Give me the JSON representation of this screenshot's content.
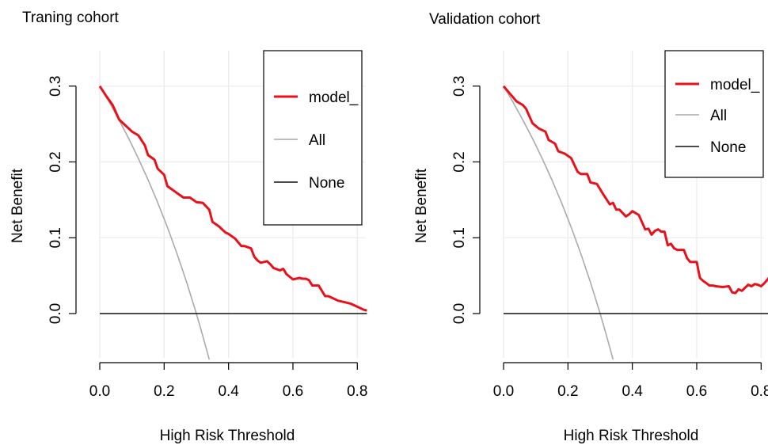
{
  "chart_data": [
    {
      "type": "line",
      "title": "Traning cohort",
      "xlabel": "High Risk Threshold",
      "ylabel": "Net Benefit",
      "xlim": [
        0,
        0.83
      ],
      "ylim": [
        -0.065,
        0.3
      ],
      "xticks": [
        "0.0",
        "0.2",
        "0.4",
        "0.6",
        "0.8"
      ],
      "yticks": [
        "0.0",
        "0.1",
        "0.2",
        "0.3"
      ],
      "grid": true,
      "legend_position": "top-right",
      "colors": {
        "model": "#e8101a",
        "all": "#aaaaaa",
        "none": "#111111",
        "grid": "#ebebeb"
      },
      "series": [
        {
          "name": "model_",
          "x": [
            0,
            0.02,
            0.04,
            0.06,
            0.08,
            0.1,
            0.12,
            0.14,
            0.15,
            0.17,
            0.18,
            0.2,
            0.21,
            0.22,
            0.24,
            0.26,
            0.28,
            0.3,
            0.32,
            0.34,
            0.35,
            0.37,
            0.39,
            0.4,
            0.42,
            0.44,
            0.45,
            0.47,
            0.48,
            0.49,
            0.5,
            0.52,
            0.53,
            0.54,
            0.56,
            0.57,
            0.58,
            0.6,
            0.62,
            0.63,
            0.64,
            0.65,
            0.66,
            0.68,
            0.7,
            0.71,
            0.72,
            0.74,
            0.76,
            0.78,
            0.8,
            0.81,
            0.82,
            0.83
          ],
          "y": [
            0.3,
            0.287,
            0.275,
            0.256,
            0.248,
            0.24,
            0.235,
            0.222,
            0.209,
            0.203,
            0.191,
            0.183,
            0.168,
            0.165,
            0.159,
            0.153,
            0.153,
            0.147,
            0.146,
            0.137,
            0.121,
            0.115,
            0.107,
            0.105,
            0.099,
            0.089,
            0.089,
            0.086,
            0.075,
            0.07,
            0.067,
            0.069,
            0.065,
            0.06,
            0.057,
            0.059,
            0.052,
            0.045,
            0.047,
            0.046,
            0.046,
            0.044,
            0.037,
            0.037,
            0.023,
            0.023,
            0.021,
            0.017,
            0.015,
            0.013,
            0.009,
            0.007,
            0.005,
            0.004
          ]
        },
        {
          "name": "All",
          "x": [
            0,
            0.03,
            0.06,
            0.09,
            0.12,
            0.15,
            0.18,
            0.21,
            0.24,
            0.27,
            0.3,
            0.32,
            0.34
          ],
          "y": [
            0.3,
            0.2784,
            0.2553,
            0.2308,
            0.2045,
            0.1765,
            0.1463,
            0.1139,
            0.0789,
            0.0411,
            0.0,
            -0.0294,
            -0.0606
          ]
        },
        {
          "name": "None",
          "x": [
            0,
            0.83
          ],
          "y": [
            0,
            0
          ]
        }
      ]
    },
    {
      "type": "line",
      "title": "Validation cohort",
      "xlabel": "High Risk Threshold",
      "ylabel": "Net Benefit",
      "xlim": [
        0,
        0.83
      ],
      "ylim": [
        -0.065,
        0.3
      ],
      "xticks": [
        "0.0",
        "0.2",
        "0.4",
        "0.6",
        "0.8"
      ],
      "yticks": [
        "0.0",
        "0.1",
        "0.2",
        "0.3"
      ],
      "grid": true,
      "legend_position": "top-right",
      "colors": {
        "model": "#e8101a",
        "all": "#aaaaaa",
        "none": "#111111",
        "grid": "#ebebeb"
      },
      "series": [
        {
          "name": "model_",
          "x": [
            0,
            0.02,
            0.04,
            0.06,
            0.07,
            0.09,
            0.11,
            0.13,
            0.14,
            0.16,
            0.17,
            0.19,
            0.21,
            0.23,
            0.24,
            0.26,
            0.27,
            0.29,
            0.3,
            0.31,
            0.33,
            0.34,
            0.35,
            0.36,
            0.38,
            0.39,
            0.4,
            0.42,
            0.44,
            0.45,
            0.46,
            0.47,
            0.48,
            0.49,
            0.5,
            0.51,
            0.52,
            0.53,
            0.54,
            0.55,
            0.56,
            0.57,
            0.58,
            0.59,
            0.6,
            0.61,
            0.62,
            0.63,
            0.64,
            0.65,
            0.66,
            0.68,
            0.7,
            0.71,
            0.72,
            0.73,
            0.74,
            0.75,
            0.76,
            0.77,
            0.78,
            0.79,
            0.8,
            0.81,
            0.82,
            0.83
          ],
          "y": [
            0.3,
            0.29,
            0.28,
            0.275,
            0.27,
            0.251,
            0.244,
            0.24,
            0.229,
            0.224,
            0.214,
            0.211,
            0.205,
            0.187,
            0.184,
            0.184,
            0.173,
            0.171,
            0.164,
            0.157,
            0.144,
            0.146,
            0.137,
            0.137,
            0.128,
            0.131,
            0.135,
            0.13,
            0.111,
            0.112,
            0.104,
            0.109,
            0.111,
            0.108,
            0.108,
            0.09,
            0.092,
            0.086,
            0.084,
            0.084,
            0.084,
            0.073,
            0.068,
            0.068,
            0.068,
            0.047,
            0.043,
            0.04,
            0.037,
            0.037,
            0.036,
            0.035,
            0.036,
            0.028,
            0.027,
            0.032,
            0.03,
            0.034,
            0.038,
            0.036,
            0.039,
            0.038,
            0.036,
            0.04,
            0.045,
            0.05
          ]
        },
        {
          "name": "All",
          "x": [
            0,
            0.03,
            0.06,
            0.09,
            0.12,
            0.15,
            0.18,
            0.21,
            0.24,
            0.27,
            0.3,
            0.32,
            0.34
          ],
          "y": [
            0.3,
            0.2784,
            0.2553,
            0.2308,
            0.2045,
            0.1765,
            0.1463,
            0.1139,
            0.0789,
            0.0411,
            0.0,
            -0.0294,
            -0.0606
          ]
        },
        {
          "name": "None",
          "x": [
            0,
            0.83
          ],
          "y": [
            0,
            0
          ]
        }
      ]
    }
  ]
}
